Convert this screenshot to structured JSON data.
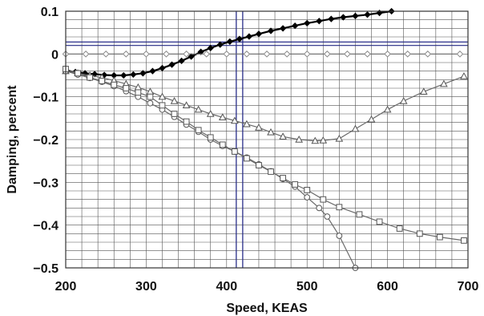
{
  "chart_data": {
    "type": "line",
    "title": "",
    "xlabel": "Speed, KEAS",
    "ylabel": "Damping, percent",
    "xlim": [
      200,
      700
    ],
    "ylim": [
      -0.5,
      0.1
    ],
    "x_ticks": [
      "200",
      "300",
      "400",
      "500",
      "600",
      "700"
    ],
    "y_ticks": [
      "0.1",
      "0",
      "−0.1",
      "−0.2",
      "−0.3",
      "−0.4",
      "−0.5"
    ],
    "grid": true,
    "legend": "none",
    "reference_lines": {
      "vertical_x": [
        412,
        420
      ],
      "horizontal_y": [
        0.02,
        0.028
      ]
    },
    "series": [
      {
        "marker": "filled-diamond",
        "color": "#000000",
        "x": [
          200,
          212,
          224,
          236,
          248,
          260,
          272,
          284,
          296,
          308,
          320,
          332,
          344,
          356,
          368,
          380,
          392,
          404,
          416,
          428,
          440,
          455,
          470,
          485,
          500,
          515,
          530,
          545,
          560,
          575,
          590,
          605
        ],
        "y": [
          -0.04,
          -0.042,
          -0.045,
          -0.047,
          -0.049,
          -0.05,
          -0.05,
          -0.048,
          -0.045,
          -0.04,
          -0.033,
          -0.025,
          -0.016,
          -0.006,
          0.005,
          0.014,
          0.022,
          0.029,
          0.035,
          0.041,
          0.047,
          0.054,
          0.06,
          0.066,
          0.072,
          0.077,
          0.082,
          0.086,
          0.089,
          0.092,
          0.096,
          0.1
        ]
      },
      {
        "marker": "open-diamond",
        "color": "#888888",
        "x": [
          200,
          225,
          250,
          275,
          300,
          325,
          350,
          375,
          400,
          425,
          450,
          475,
          500,
          525,
          550,
          575,
          600,
          625,
          650,
          690
        ],
        "y": [
          0,
          0,
          0,
          0,
          0,
          0,
          0,
          0,
          0,
          0,
          0,
          0,
          0,
          0,
          0,
          0,
          0,
          0,
          0,
          0
        ]
      },
      {
        "marker": "open-triangle",
        "color": "#555555",
        "x": [
          200,
          215,
          230,
          245,
          260,
          275,
          290,
          305,
          320,
          335,
          350,
          365,
          380,
          395,
          410,
          425,
          440,
          455,
          470,
          490,
          510,
          520,
          540,
          560,
          580,
          600,
          620,
          645,
          670,
          695
        ],
        "y": [
          -0.04,
          -0.045,
          -0.05,
          -0.055,
          -0.062,
          -0.07,
          -0.078,
          -0.088,
          -0.1,
          -0.11,
          -0.12,
          -0.13,
          -0.14,
          -0.148,
          -0.156,
          -0.164,
          -0.172,
          -0.183,
          -0.193,
          -0.2,
          -0.203,
          -0.202,
          -0.198,
          -0.175,
          -0.153,
          -0.13,
          -0.11,
          -0.088,
          -0.07,
          -0.052
        ]
      },
      {
        "marker": "open-circle",
        "color": "#555555",
        "x": [
          200,
          215,
          230,
          245,
          260,
          275,
          290,
          305,
          320,
          335,
          350,
          365,
          380,
          395,
          410,
          425,
          440,
          455,
          470,
          485,
          500,
          515,
          525,
          540,
          560
        ],
        "y": [
          -0.04,
          -0.048,
          -0.056,
          -0.065,
          -0.075,
          -0.087,
          -0.1,
          -0.115,
          -0.13,
          -0.147,
          -0.165,
          -0.182,
          -0.2,
          -0.215,
          -0.228,
          -0.242,
          -0.258,
          -0.274,
          -0.292,
          -0.31,
          -0.335,
          -0.36,
          -0.38,
          -0.425,
          -0.5
        ]
      },
      {
        "marker": "open-square",
        "color": "#555555",
        "x": [
          200,
          215,
          230,
          245,
          260,
          275,
          290,
          305,
          320,
          335,
          350,
          365,
          380,
          395,
          410,
          425,
          440,
          455,
          470,
          485,
          500,
          520,
          540,
          565,
          590,
          615,
          640,
          665,
          695
        ],
        "y": [
          -0.035,
          -0.045,
          -0.055,
          -0.063,
          -0.072,
          -0.08,
          -0.09,
          -0.1,
          -0.12,
          -0.14,
          -0.158,
          -0.178,
          -0.195,
          -0.212,
          -0.228,
          -0.244,
          -0.26,
          -0.275,
          -0.29,
          -0.305,
          -0.318,
          -0.34,
          -0.358,
          -0.375,
          -0.392,
          -0.408,
          -0.42,
          -0.428,
          -0.436
        ]
      }
    ]
  }
}
